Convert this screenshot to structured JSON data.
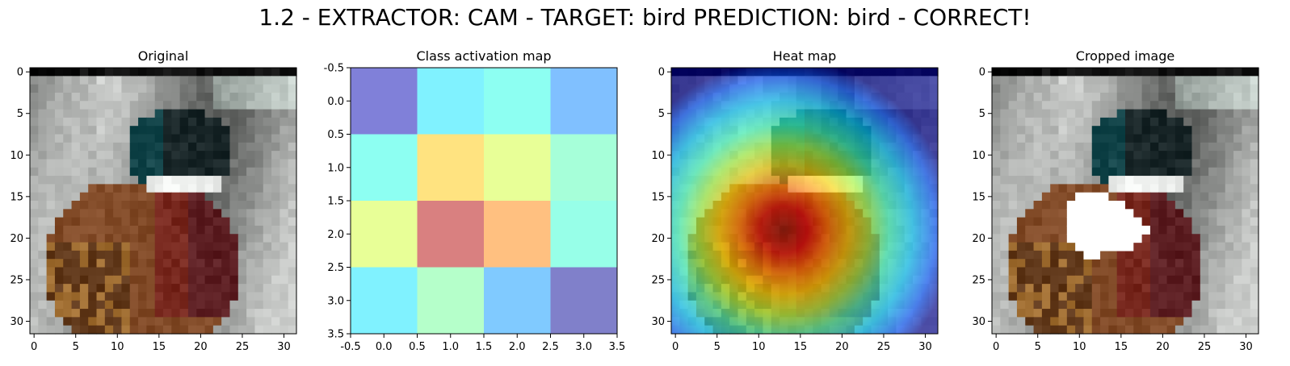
{
  "suptitle": "1.2 - EXTRACTOR: CAM  -  TARGET: bird  PREDICTION: bird - CORRECT!",
  "chart_data": [
    {
      "type": "image",
      "title": "Original",
      "image_size": [
        32,
        32
      ],
      "extent": [
        -0.5,
        31.5,
        31.5,
        -0.5
      ],
      "xticks": [
        0,
        5,
        10,
        15,
        20,
        25,
        30
      ],
      "yticks": [
        0,
        5,
        10,
        15,
        20,
        25,
        30
      ],
      "content": "pixelated photo of a pheasant: dark green head, white neck ring, red-brown and spotted body on grey background",
      "mask": null
    },
    {
      "type": "heatmap",
      "title": "Class activation map",
      "colormap": "jet",
      "alpha": 0.5,
      "extent": [
        -0.5,
        3.5,
        3.5,
        -0.5
      ],
      "xticks": [
        -0.5,
        0.0,
        0.5,
        1.0,
        1.5,
        2.0,
        2.5,
        3.0,
        3.5
      ],
      "yticks": [
        -0.5,
        0.0,
        0.5,
        1.0,
        1.5,
        2.0,
        2.5,
        3.0,
        3.5
      ],
      "tick_format": "fixed1",
      "values": [
        [
          0.05,
          0.35,
          0.4,
          0.25
        ],
        [
          0.4,
          0.68,
          0.58,
          0.45
        ],
        [
          0.58,
          0.95,
          0.75,
          0.42
        ],
        [
          0.35,
          0.48,
          0.27,
          0.02
        ]
      ]
    },
    {
      "type": "heatmap",
      "title": "Heat map",
      "colormap": "jet",
      "overlay": "original image",
      "extent": [
        -0.5,
        31.5,
        31.5,
        -0.5
      ],
      "xticks": [
        0,
        5,
        10,
        15,
        20,
        25,
        30
      ],
      "yticks": [
        0,
        5,
        10,
        15,
        20,
        25,
        30
      ],
      "peak": [
        13,
        19
      ]
    },
    {
      "type": "image",
      "title": "Cropped image",
      "image_size": [
        32,
        32
      ],
      "extent": [
        -0.5,
        31.5,
        31.5,
        -0.5
      ],
      "xticks": [
        0,
        5,
        10,
        15,
        20,
        25,
        30
      ],
      "yticks": [
        0,
        5,
        10,
        15,
        20,
        25,
        30
      ],
      "content": "same pheasant photo with the highest-activation region erased to white",
      "mask": {
        "color": "#ffffff",
        "rows": [
          [
            15,
            10,
            13
          ],
          [
            16,
            9,
            15
          ],
          [
            17,
            9,
            16
          ],
          [
            18,
            9,
            17
          ],
          [
            19,
            9,
            18
          ],
          [
            20,
            9,
            17
          ],
          [
            21,
            10,
            16
          ],
          [
            22,
            11,
            12
          ]
        ]
      }
    }
  ]
}
